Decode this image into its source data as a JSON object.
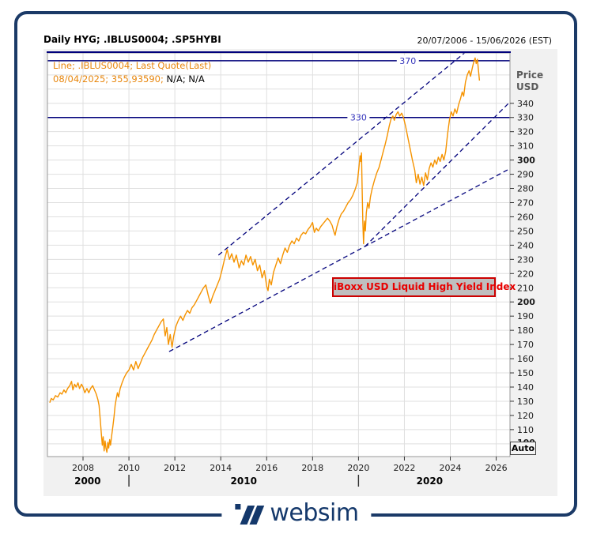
{
  "window": {
    "title": "Daily HYG; .IBLUS0004; .SP5HYBI",
    "date_range": "20/07/2006 - 15/06/2026 (EST)"
  },
  "legend": {
    "line1": "Line; .IBLUS0004; Last Quote(Last)",
    "line2_orange": "08/04/2025; 355,93590;",
    "line2_black": "N/A; N/A"
  },
  "annotation_box": {
    "text": "iBoxx USD Liquid High Yield Index"
  },
  "price_axis": {
    "unit_line1": "Price",
    "unit_line2": "USD",
    "auto_button": "Auto"
  },
  "colors": {
    "series_orange": "#f59300",
    "legend_orange": "#e8870e",
    "navy_line": "#00007b",
    "level_label_blue": "#3434bb",
    "trendline_navy": "#00007b",
    "annotation_red": "#e80000",
    "annotation_bg": "#bfbfbf",
    "panel_bg": "#f1f1f1",
    "plot_bg": "#ffffff",
    "grid": "#dfdfdf",
    "axis_text": "#1a1a1a",
    "frame_gray": "#999999",
    "brand_navy": "#14386b"
  },
  "chart_data": {
    "type": "line",
    "title": "Daily HYG; .IBLUS0004; .SP5HYBI",
    "ylabel": "Price USD",
    "x_range": [
      2006.45,
      2026.6
    ],
    "y_range": [
      91,
      375.5
    ],
    "grid": true,
    "x_ticks": [
      2008,
      2010,
      2012,
      2014,
      2016,
      2018,
      2020,
      2022,
      2024,
      2026
    ],
    "decade_labels": [
      {
        "label": "2000",
        "center_year": 2008.2
      },
      {
        "label": "2010",
        "center_year": 2015.0
      },
      {
        "label": "2020",
        "center_year": 2023.1
      }
    ],
    "decade_separator_years": [
      2010,
      2020
    ],
    "y_ticks": {
      "label_min": 110,
      "label_max": 340,
      "step": 10,
      "grid_min": 100,
      "grid_max": 370,
      "bold": [
        100,
        200,
        300
      ],
      "extra_bold_label": 100
    },
    "horizontal_levels": [
      {
        "value": 370,
        "label": "370",
        "label_center_x_year": 2022.15
      },
      {
        "value": 330,
        "label": "330",
        "label_center_x_year": 2020.0
      }
    ],
    "trendlines": [
      {
        "name": "upper-resistance",
        "from": [
          2013.9,
          233
        ],
        "to": [
          2024.62,
          375.5
        ]
      },
      {
        "name": "lower-support",
        "from": [
          2011.75,
          165
        ],
        "to": [
          2026.6,
          294
        ]
      },
      {
        "name": "covid-support",
        "from": [
          2020.28,
          239
        ],
        "to": [
          2026.6,
          341
        ]
      }
    ],
    "series": [
      {
        "name": ".IBLUS0004 Last Quote(Last)",
        "color": "#f59300",
        "points": [
          [
            2006.55,
            129
          ],
          [
            2006.62,
            132
          ],
          [
            2006.7,
            131
          ],
          [
            2006.8,
            134
          ],
          [
            2006.9,
            133
          ],
          [
            2007.0,
            136
          ],
          [
            2007.08,
            135
          ],
          [
            2007.17,
            138
          ],
          [
            2007.25,
            136
          ],
          [
            2007.33,
            139
          ],
          [
            2007.42,
            141
          ],
          [
            2007.5,
            144
          ],
          [
            2007.56,
            138
          ],
          [
            2007.63,
            142
          ],
          [
            2007.7,
            140
          ],
          [
            2007.78,
            143
          ],
          [
            2007.85,
            139
          ],
          [
            2007.93,
            142
          ],
          [
            2008.0,
            140
          ],
          [
            2008.08,
            136
          ],
          [
            2008.17,
            139
          ],
          [
            2008.25,
            136
          ],
          [
            2008.33,
            139
          ],
          [
            2008.42,
            141
          ],
          [
            2008.5,
            138
          ],
          [
            2008.58,
            135
          ],
          [
            2008.65,
            131
          ],
          [
            2008.7,
            127
          ],
          [
            2008.75,
            117
          ],
          [
            2008.8,
            107
          ],
          [
            2008.84,
            99
          ],
          [
            2008.88,
            105
          ],
          [
            2008.92,
            95
          ],
          [
            2008.96,
            102
          ],
          [
            2009.0,
            97
          ],
          [
            2009.04,
            94
          ],
          [
            2009.08,
            101
          ],
          [
            2009.12,
            97
          ],
          [
            2009.16,
            103
          ],
          [
            2009.2,
            99
          ],
          [
            2009.25,
            106
          ],
          [
            2009.3,
            112
          ],
          [
            2009.35,
            119
          ],
          [
            2009.4,
            127
          ],
          [
            2009.45,
            132
          ],
          [
            2009.5,
            136
          ],
          [
            2009.55,
            133
          ],
          [
            2009.62,
            139
          ],
          [
            2009.7,
            143
          ],
          [
            2009.8,
            147
          ],
          [
            2009.9,
            150
          ],
          [
            2010.0,
            152
          ],
          [
            2010.1,
            156
          ],
          [
            2010.2,
            152
          ],
          [
            2010.3,
            158
          ],
          [
            2010.4,
            153
          ],
          [
            2010.5,
            157
          ],
          [
            2010.6,
            161
          ],
          [
            2010.7,
            164
          ],
          [
            2010.8,
            167
          ],
          [
            2010.9,
            170
          ],
          [
            2011.0,
            173
          ],
          [
            2011.1,
            177
          ],
          [
            2011.2,
            180
          ],
          [
            2011.3,
            183
          ],
          [
            2011.4,
            186
          ],
          [
            2011.5,
            188
          ],
          [
            2011.58,
            176
          ],
          [
            2011.65,
            182
          ],
          [
            2011.72,
            170
          ],
          [
            2011.8,
            177
          ],
          [
            2011.88,
            168
          ],
          [
            2011.95,
            176
          ],
          [
            2012.05,
            183
          ],
          [
            2012.15,
            187
          ],
          [
            2012.25,
            190
          ],
          [
            2012.35,
            187
          ],
          [
            2012.45,
            191
          ],
          [
            2012.55,
            194
          ],
          [
            2012.65,
            192
          ],
          [
            2012.75,
            196
          ],
          [
            2012.85,
            198
          ],
          [
            2012.95,
            201
          ],
          [
            2013.05,
            204
          ],
          [
            2013.15,
            207
          ],
          [
            2013.25,
            210
          ],
          [
            2013.35,
            212
          ],
          [
            2013.45,
            205
          ],
          [
            2013.55,
            199
          ],
          [
            2013.65,
            204
          ],
          [
            2013.75,
            208
          ],
          [
            2013.85,
            212
          ],
          [
            2013.95,
            216
          ],
          [
            2014.05,
            222
          ],
          [
            2014.15,
            229
          ],
          [
            2014.28,
            237
          ],
          [
            2014.38,
            230
          ],
          [
            2014.48,
            234
          ],
          [
            2014.58,
            228
          ],
          [
            2014.68,
            233
          ],
          [
            2014.8,
            224
          ],
          [
            2014.9,
            229
          ],
          [
            2015.0,
            226
          ],
          [
            2015.1,
            233
          ],
          [
            2015.2,
            228
          ],
          [
            2015.3,
            232
          ],
          [
            2015.4,
            226
          ],
          [
            2015.5,
            230
          ],
          [
            2015.6,
            222
          ],
          [
            2015.7,
            226
          ],
          [
            2015.8,
            217
          ],
          [
            2015.9,
            222
          ],
          [
            2016.0,
            211
          ],
          [
            2016.06,
            208
          ],
          [
            2016.12,
            216
          ],
          [
            2016.2,
            212
          ],
          [
            2016.3,
            221
          ],
          [
            2016.4,
            226
          ],
          [
            2016.5,
            231
          ],
          [
            2016.6,
            227
          ],
          [
            2016.7,
            233
          ],
          [
            2016.8,
            238
          ],
          [
            2016.9,
            235
          ],
          [
            2017.0,
            240
          ],
          [
            2017.1,
            243
          ],
          [
            2017.2,
            241
          ],
          [
            2017.3,
            245
          ],
          [
            2017.4,
            243
          ],
          [
            2017.5,
            247
          ],
          [
            2017.6,
            249
          ],
          [
            2017.7,
            248
          ],
          [
            2017.8,
            251
          ],
          [
            2017.9,
            253
          ],
          [
            2018.0,
            256
          ],
          [
            2018.08,
            249
          ],
          [
            2018.16,
            252
          ],
          [
            2018.25,
            250
          ],
          [
            2018.35,
            253
          ],
          [
            2018.45,
            255
          ],
          [
            2018.55,
            257
          ],
          [
            2018.65,
            259
          ],
          [
            2018.75,
            257
          ],
          [
            2018.85,
            254
          ],
          [
            2018.92,
            250
          ],
          [
            2018.98,
            247
          ],
          [
            2019.06,
            253
          ],
          [
            2019.15,
            258
          ],
          [
            2019.25,
            262
          ],
          [
            2019.35,
            264
          ],
          [
            2019.45,
            267
          ],
          [
            2019.55,
            270
          ],
          [
            2019.65,
            272
          ],
          [
            2019.75,
            275
          ],
          [
            2019.85,
            279
          ],
          [
            2019.95,
            284
          ],
          [
            2020.02,
            295
          ],
          [
            2020.07,
            303
          ],
          [
            2020.1,
            299
          ],
          [
            2020.13,
            305
          ],
          [
            2020.16,
            280
          ],
          [
            2020.19,
            256
          ],
          [
            2020.22,
            241
          ],
          [
            2020.26,
            257
          ],
          [
            2020.3,
            250
          ],
          [
            2020.34,
            263
          ],
          [
            2020.4,
            270
          ],
          [
            2020.46,
            266
          ],
          [
            2020.52,
            274
          ],
          [
            2020.6,
            280
          ],
          [
            2020.7,
            286
          ],
          [
            2020.8,
            291
          ],
          [
            2020.9,
            295
          ],
          [
            2021.0,
            301
          ],
          [
            2021.08,
            306
          ],
          [
            2021.16,
            311
          ],
          [
            2021.25,
            317
          ],
          [
            2021.34,
            324
          ],
          [
            2021.42,
            329
          ],
          [
            2021.5,
            331
          ],
          [
            2021.56,
            328
          ],
          [
            2021.64,
            332
          ],
          [
            2021.72,
            334
          ],
          [
            2021.8,
            331
          ],
          [
            2021.88,
            333
          ],
          [
            2021.96,
            330
          ],
          [
            2022.05,
            324
          ],
          [
            2022.15,
            316
          ],
          [
            2022.25,
            308
          ],
          [
            2022.35,
            300
          ],
          [
            2022.45,
            293
          ],
          [
            2022.52,
            284
          ],
          [
            2022.6,
            290
          ],
          [
            2022.68,
            283
          ],
          [
            2022.76,
            288
          ],
          [
            2022.84,
            282
          ],
          [
            2022.92,
            291
          ],
          [
            2023.0,
            286
          ],
          [
            2023.08,
            294
          ],
          [
            2023.16,
            298
          ],
          [
            2023.24,
            295
          ],
          [
            2023.32,
            300
          ],
          [
            2023.4,
            297
          ],
          [
            2023.48,
            302
          ],
          [
            2023.56,
            299
          ],
          [
            2023.64,
            304
          ],
          [
            2023.72,
            300
          ],
          [
            2023.8,
            306
          ],
          [
            2023.88,
            318
          ],
          [
            2023.96,
            328
          ],
          [
            2024.04,
            334
          ],
          [
            2024.12,
            331
          ],
          [
            2024.2,
            336
          ],
          [
            2024.28,
            333
          ],
          [
            2024.36,
            339
          ],
          [
            2024.44,
            343
          ],
          [
            2024.52,
            348
          ],
          [
            2024.58,
            345
          ],
          [
            2024.66,
            355
          ],
          [
            2024.74,
            360
          ],
          [
            2024.82,
            363
          ],
          [
            2024.88,
            359
          ],
          [
            2024.96,
            365
          ],
          [
            2025.02,
            369
          ],
          [
            2025.08,
            372
          ],
          [
            2025.13,
            368
          ],
          [
            2025.18,
            371
          ],
          [
            2025.27,
            356
          ]
        ]
      }
    ]
  }
}
